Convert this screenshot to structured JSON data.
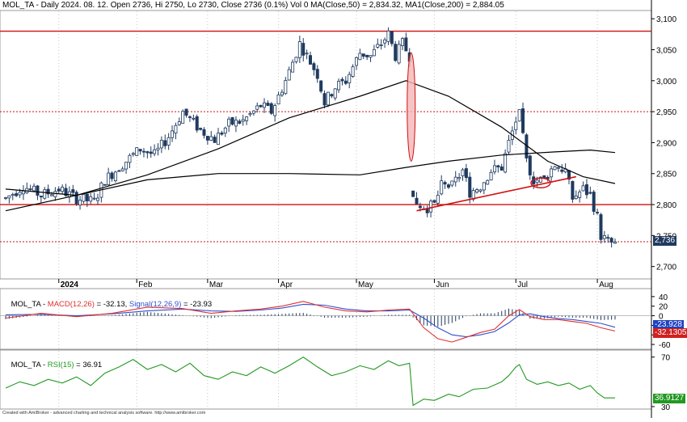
{
  "header": {
    "ticker": "MOL_TA",
    "summary": " - Daily 2024. 08. 12. Open 2736, Hi 2750, Lo 2730, Close 2736 (0.1%) Vol 0 ",
    "ma50_label": "MA(Close,50) = 2,834.32,",
    "ma200_label": "MA1(Close,200) = 2,884.05"
  },
  "macd_header": {
    "ticker": "MOL_TA",
    "macd_label": "MACD(12,26)",
    "macd_value": " = -32.13, ",
    "signal_label": "Signal(12,26,9)",
    "signal_value": " = -23.93"
  },
  "rsi_header": {
    "ticker": "MOL_TA",
    "rsi_label": "RSI(15)",
    "rsi_value": " = 36.91"
  },
  "credit": "Created with AmiBroker - advanced charting and technical analysis software. http://www.amibroker.com",
  "tags": {
    "price": "2,736",
    "signal": "-23.928",
    "macd": "-32.1305",
    "rsi": "36.9127"
  },
  "colors": {
    "candle_up": "#ffffff",
    "candle_down": "#1f3a5f",
    "candle_outline": "#1f3a5f",
    "ma": "#000000",
    "level_line": "#d01010",
    "macd": "#e03030",
    "signal": "#3050d0",
    "rsi": "#229922",
    "price_tag": "#1f3a5f",
    "rsi_tag": "#229922",
    "grid": "#c8c8c8"
  },
  "chart_data": [
    {
      "type": "candlestick",
      "title": "MOL_TA - Daily 2024. 08. 12.",
      "y_ticks": [
        2700,
        2750,
        2800,
        2850,
        2900,
        2950,
        3000,
        3050,
        3100
      ],
      "y_tick_labels": [
        "2,700",
        "2,750",
        "2,800",
        "2,850",
        "2,900",
        "2,950",
        "3,000",
        "3,050",
        "3,100"
      ],
      "ylim": [
        2680,
        3112
      ],
      "x_tick_labels": [
        "2024",
        "Feb",
        "Mar",
        "Apr",
        "May",
        "Jun",
        "Jul",
        "Aug"
      ],
      "x_tick_index": [
        15,
        37,
        57,
        77,
        99,
        121,
        144,
        167
      ],
      "horizontal_levels": [
        {
          "value": 3080,
          "style": "solid"
        },
        {
          "value": 2950,
          "style": "dotted"
        },
        {
          "value": 2800,
          "style": "solid"
        },
        {
          "value": 2740,
          "style": "dotted"
        }
      ],
      "anchors": [
        {
          "i": 0,
          "v": 2810
        },
        {
          "i": 5,
          "v": 2830
        },
        {
          "i": 10,
          "v": 2815
        },
        {
          "i": 15,
          "v": 2825
        },
        {
          "i": 20,
          "v": 2810
        },
        {
          "i": 25,
          "v": 2805
        },
        {
          "i": 28,
          "v": 2840
        },
        {
          "i": 33,
          "v": 2865
        },
        {
          "i": 38,
          "v": 2890
        },
        {
          "i": 42,
          "v": 2880
        },
        {
          "i": 46,
          "v": 2910
        },
        {
          "i": 50,
          "v": 2950
        },
        {
          "i": 55,
          "v": 2920
        },
        {
          "i": 59,
          "v": 2905
        },
        {
          "i": 63,
          "v": 2930
        },
        {
          "i": 67,
          "v": 2935
        },
        {
          "i": 72,
          "v": 2960
        },
        {
          "i": 75,
          "v": 2950
        },
        {
          "i": 79,
          "v": 3000
        },
        {
          "i": 83,
          "v": 3060
        },
        {
          "i": 86,
          "v": 3030
        },
        {
          "i": 88,
          "v": 3010
        },
        {
          "i": 90,
          "v": 2965
        },
        {
          "i": 93,
          "v": 2990
        },
        {
          "i": 96,
          "v": 3000
        },
        {
          "i": 100,
          "v": 3045
        },
        {
          "i": 103,
          "v": 3040
        },
        {
          "i": 106,
          "v": 3060
        },
        {
          "i": 108,
          "v": 3075
        },
        {
          "i": 110,
          "v": 3040
        },
        {
          "i": 112,
          "v": 3060
        },
        {
          "i": 114,
          "v": 3040
        },
        {
          "i": 115,
          "v": 2810
        },
        {
          "i": 117,
          "v": 2800
        },
        {
          "i": 119,
          "v": 2795
        },
        {
          "i": 121,
          "v": 2800
        },
        {
          "i": 123,
          "v": 2830
        },
        {
          "i": 126,
          "v": 2830
        },
        {
          "i": 129,
          "v": 2855
        },
        {
          "i": 131,
          "v": 2820
        },
        {
          "i": 134,
          "v": 2830
        },
        {
          "i": 137,
          "v": 2855
        },
        {
          "i": 140,
          "v": 2860
        },
        {
          "i": 142,
          "v": 2900
        },
        {
          "i": 144,
          "v": 2935
        },
        {
          "i": 145,
          "v": 2945
        },
        {
          "i": 147,
          "v": 2870
        },
        {
          "i": 149,
          "v": 2840
        },
        {
          "i": 152,
          "v": 2840
        },
        {
          "i": 155,
          "v": 2865
        },
        {
          "i": 158,
          "v": 2855
        },
        {
          "i": 160,
          "v": 2810
        },
        {
          "i": 163,
          "v": 2825
        },
        {
          "i": 165,
          "v": 2815
        },
        {
          "i": 167,
          "v": 2780
        },
        {
          "i": 168,
          "v": 2750
        },
        {
          "i": 170,
          "v": 2740
        },
        {
          "i": 172,
          "v": 2736
        }
      ],
      "ma50": [
        {
          "i": 0,
          "v": 2825
        },
        {
          "i": 20,
          "v": 2815
        },
        {
          "i": 40,
          "v": 2848
        },
        {
          "i": 60,
          "v": 2890
        },
        {
          "i": 80,
          "v": 2940
        },
        {
          "i": 100,
          "v": 2975
        },
        {
          "i": 113,
          "v": 3000
        },
        {
          "i": 125,
          "v": 2975
        },
        {
          "i": 140,
          "v": 2925
        },
        {
          "i": 153,
          "v": 2870
        },
        {
          "i": 163,
          "v": 2845
        },
        {
          "i": 172,
          "v": 2834
        }
      ],
      "ma200": [
        {
          "i": 0,
          "v": 2790
        },
        {
          "i": 20,
          "v": 2815
        },
        {
          "i": 40,
          "v": 2840
        },
        {
          "i": 60,
          "v": 2850
        },
        {
          "i": 80,
          "v": 2850
        },
        {
          "i": 100,
          "v": 2848
        },
        {
          "i": 113,
          "v": 2860
        },
        {
          "i": 125,
          "v": 2870
        },
        {
          "i": 140,
          "v": 2880
        },
        {
          "i": 155,
          "v": 2885
        },
        {
          "i": 165,
          "v": 2888
        },
        {
          "i": 172,
          "v": 2884
        }
      ],
      "gap_highlight": {
        "i": 114,
        "top": 3045,
        "bottom": 2870
      },
      "trendline": [
        {
          "i": 116,
          "v": 2790
        },
        {
          "i": 161,
          "v": 2845
        }
      ],
      "circle_marker": {
        "i": 151,
        "v": 2835
      }
    },
    {
      "type": "line",
      "title": "MACD(12,26)",
      "y_ticks": [
        40,
        20,
        0,
        -20,
        -40,
        -60
      ],
      "ylim": [
        -70,
        55
      ],
      "macd": [
        {
          "i": 0,
          "v": -5
        },
        {
          "i": 10,
          "v": 5
        },
        {
          "i": 20,
          "v": -2
        },
        {
          "i": 30,
          "v": 5
        },
        {
          "i": 40,
          "v": 18
        },
        {
          "i": 50,
          "v": 15
        },
        {
          "i": 58,
          "v": 5
        },
        {
          "i": 65,
          "v": 10
        },
        {
          "i": 72,
          "v": 14
        },
        {
          "i": 78,
          "v": 20
        },
        {
          "i": 84,
          "v": 30
        },
        {
          "i": 90,
          "v": 18
        },
        {
          "i": 96,
          "v": 10
        },
        {
          "i": 102,
          "v": 8
        },
        {
          "i": 108,
          "v": 12
        },
        {
          "i": 114,
          "v": 14
        },
        {
          "i": 118,
          "v": -25
        },
        {
          "i": 122,
          "v": -48
        },
        {
          "i": 126,
          "v": -55
        },
        {
          "i": 130,
          "v": -45
        },
        {
          "i": 134,
          "v": -35
        },
        {
          "i": 138,
          "v": -28
        },
        {
          "i": 142,
          "v": 0
        },
        {
          "i": 145,
          "v": 13
        },
        {
          "i": 148,
          "v": -2
        },
        {
          "i": 152,
          "v": -8
        },
        {
          "i": 156,
          "v": -8
        },
        {
          "i": 160,
          "v": -12
        },
        {
          "i": 164,
          "v": -16
        },
        {
          "i": 168,
          "v": -25
        },
        {
          "i": 172,
          "v": -32
        }
      ],
      "signal": [
        {
          "i": 0,
          "v": 2
        },
        {
          "i": 10,
          "v": 3
        },
        {
          "i": 20,
          "v": 0
        },
        {
          "i": 30,
          "v": 4
        },
        {
          "i": 40,
          "v": 10
        },
        {
          "i": 50,
          "v": 14
        },
        {
          "i": 58,
          "v": 10
        },
        {
          "i": 65,
          "v": 9
        },
        {
          "i": 72,
          "v": 12
        },
        {
          "i": 78,
          "v": 16
        },
        {
          "i": 84,
          "v": 24
        },
        {
          "i": 90,
          "v": 22
        },
        {
          "i": 96,
          "v": 14
        },
        {
          "i": 102,
          "v": 10
        },
        {
          "i": 108,
          "v": 10
        },
        {
          "i": 114,
          "v": 12
        },
        {
          "i": 118,
          "v": -5
        },
        {
          "i": 122,
          "v": -25
        },
        {
          "i": 126,
          "v": -40
        },
        {
          "i": 130,
          "v": -44
        },
        {
          "i": 134,
          "v": -40
        },
        {
          "i": 138,
          "v": -33
        },
        {
          "i": 142,
          "v": -15
        },
        {
          "i": 145,
          "v": 2
        },
        {
          "i": 148,
          "v": 4
        },
        {
          "i": 152,
          "v": -2
        },
        {
          "i": 156,
          "v": -6
        },
        {
          "i": 160,
          "v": -8
        },
        {
          "i": 164,
          "v": -12
        },
        {
          "i": 168,
          "v": -16
        },
        {
          "i": 172,
          "v": -24
        }
      ]
    },
    {
      "type": "line",
      "title": "RSI(15)",
      "y_ticks": [
        70,
        30
      ],
      "ylim": [
        28,
        75
      ],
      "rsi": [
        {
          "i": 0,
          "v": 45
        },
        {
          "i": 4,
          "v": 50
        },
        {
          "i": 8,
          "v": 47
        },
        {
          "i": 12,
          "v": 52
        },
        {
          "i": 16,
          "v": 49
        },
        {
          "i": 20,
          "v": 54
        },
        {
          "i": 24,
          "v": 47
        },
        {
          "i": 28,
          "v": 57
        },
        {
          "i": 32,
          "v": 62
        },
        {
          "i": 36,
          "v": 68
        },
        {
          "i": 40,
          "v": 60
        },
        {
          "i": 44,
          "v": 64
        },
        {
          "i": 48,
          "v": 58
        },
        {
          "i": 52,
          "v": 65
        },
        {
          "i": 56,
          "v": 55
        },
        {
          "i": 60,
          "v": 52
        },
        {
          "i": 64,
          "v": 58
        },
        {
          "i": 68,
          "v": 55
        },
        {
          "i": 72,
          "v": 62
        },
        {
          "i": 76,
          "v": 57
        },
        {
          "i": 80,
          "v": 63
        },
        {
          "i": 84,
          "v": 70
        },
        {
          "i": 88,
          "v": 62
        },
        {
          "i": 92,
          "v": 55
        },
        {
          "i": 96,
          "v": 58
        },
        {
          "i": 100,
          "v": 63
        },
        {
          "i": 104,
          "v": 60
        },
        {
          "i": 108,
          "v": 67
        },
        {
          "i": 111,
          "v": 63
        },
        {
          "i": 114,
          "v": 65
        },
        {
          "i": 115,
          "v": 31
        },
        {
          "i": 118,
          "v": 36
        },
        {
          "i": 121,
          "v": 35
        },
        {
          "i": 125,
          "v": 40
        },
        {
          "i": 128,
          "v": 38
        },
        {
          "i": 132,
          "v": 44
        },
        {
          "i": 136,
          "v": 45
        },
        {
          "i": 140,
          "v": 50
        },
        {
          "i": 142,
          "v": 55
        },
        {
          "i": 144,
          "v": 62
        },
        {
          "i": 145,
          "v": 64
        },
        {
          "i": 147,
          "v": 52
        },
        {
          "i": 150,
          "v": 48
        },
        {
          "i": 153,
          "v": 50
        },
        {
          "i": 156,
          "v": 47
        },
        {
          "i": 159,
          "v": 49
        },
        {
          "i": 162,
          "v": 44
        },
        {
          "i": 165,
          "v": 47
        },
        {
          "i": 167,
          "v": 41
        },
        {
          "i": 169,
          "v": 37
        },
        {
          "i": 172,
          "v": 37
        }
      ]
    }
  ]
}
